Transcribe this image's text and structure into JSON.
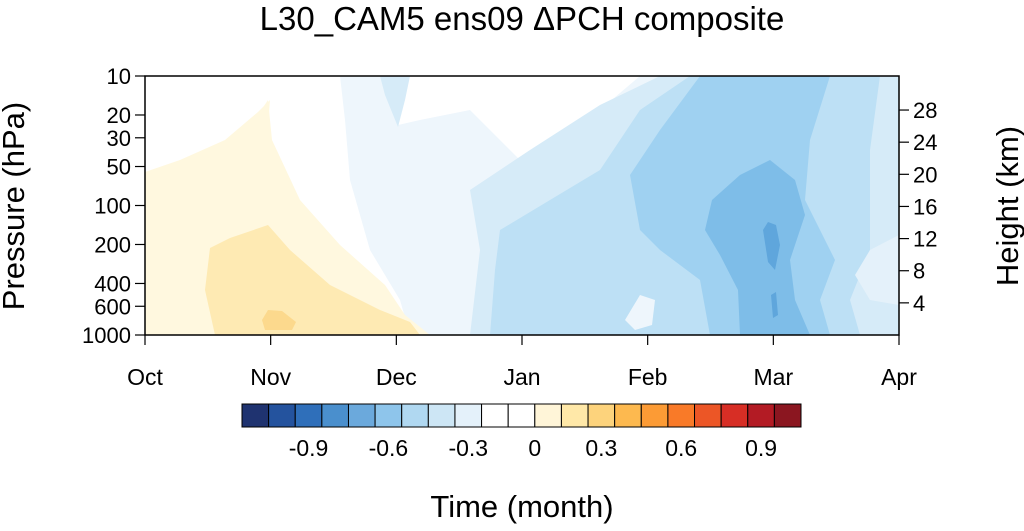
{
  "chart_data": {
    "type": "heatmap",
    "title": "L30_CAM5 ens09 ΔPCH composite",
    "xlabel": "Time (month)",
    "ylabel": "Pressure (hPa)",
    "y2label": "Height (km)",
    "x_ticks": [
      "Oct",
      "Nov",
      "Dec",
      "Jan",
      "Feb",
      "Mar",
      "Apr"
    ],
    "y_ticks": [
      10,
      20,
      30,
      50,
      100,
      200,
      400,
      600,
      1000
    ],
    "y_scale": "log",
    "y_range": [
      1000,
      10
    ],
    "y2_ticks": [
      28,
      24,
      20,
      16,
      12,
      8,
      4
    ],
    "colorbar": {
      "colors": [
        "#1f3370",
        "#24539e",
        "#2f6fba",
        "#4a8fcd",
        "#6ba9dc",
        "#8ec5eb",
        "#b0d8f1",
        "#cde6f5",
        "#e4f1fa",
        "#ffffff",
        "#ffffff",
        "#fff5d8",
        "#ffe8a8",
        "#fdd37c",
        "#fdb94f",
        "#fc9b35",
        "#f97a28",
        "#ec5626",
        "#d72e25",
        "#b31b24",
        "#8b1620"
      ],
      "tick_labels": [
        "-0.9",
        "-0.6",
        "-0.3",
        "0",
        "0.3",
        "0.6",
        "0.9"
      ]
    },
    "regions": [
      {
        "level": 0.1,
        "color": "#fff8df",
        "desc": "warm anomaly Oct-Dec"
      },
      {
        "level": 0.2,
        "color": "#feeab3",
        "desc": "warm anomaly core Nov"
      },
      {
        "level": 0.3,
        "color": "#fcd98d",
        "desc": "warm anomaly peak Nov near surface"
      },
      {
        "level": -0.1,
        "color": "#eef6fc",
        "desc": "weak cold anomaly Dec-Apr"
      },
      {
        "level": -0.2,
        "color": "#d6ebf8",
        "desc": "cold anomaly Jan-Mar"
      },
      {
        "level": -0.3,
        "color": "#bde0f5",
        "desc": "cold anomaly Feb-Mar"
      },
      {
        "level": -0.4,
        "color": "#9fd1f1",
        "desc": "cold anomaly Feb-Mar core"
      },
      {
        "level": -0.5,
        "color": "#7ebde8",
        "desc": "cold anomaly Mar"
      },
      {
        "level": -0.6,
        "color": "#5fa6dc",
        "desc": "cold anomaly peak Mar 200 hPa"
      }
    ]
  }
}
